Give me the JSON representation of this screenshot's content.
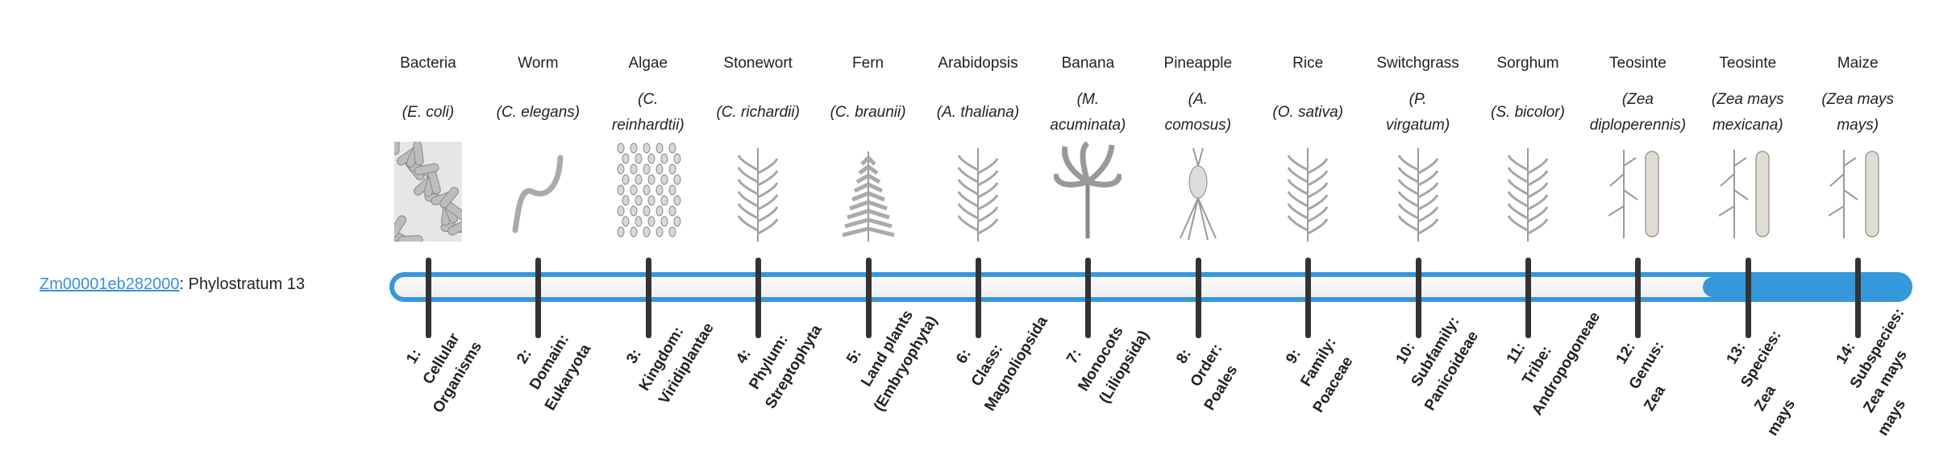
{
  "gene": {
    "id": "Zm00001eb282000",
    "suffix": ": Phylostratum 13"
  },
  "progress": {
    "stratum": 13,
    "total": 14
  },
  "colors": {
    "accent": "#3498db",
    "link": "#3a8fd9",
    "tick": "#333333"
  },
  "organisms": [
    {
      "common": "Bacteria",
      "scientific": [
        "(E. coli)"
      ],
      "image": "bacteria-icon"
    },
    {
      "common": "Worm",
      "scientific": [
        "(C. elegans)"
      ],
      "image": "worm-icon"
    },
    {
      "common": "Algae",
      "scientific": [
        "(C.",
        "reinhardtii)"
      ],
      "image": "algae-icon"
    },
    {
      "common": "Stonewort",
      "scientific": [
        "(C. richardii)"
      ],
      "image": "stonewort-icon"
    },
    {
      "common": "Fern",
      "scientific": [
        "(C. braunii)"
      ],
      "image": "fern-icon"
    },
    {
      "common": "Arabidopsis",
      "scientific": [
        "(A. thaliana)"
      ],
      "image": "arabidopsis-icon"
    },
    {
      "common": "Banana",
      "scientific": [
        "(M.",
        "acuminata)"
      ],
      "image": "banana-icon"
    },
    {
      "common": "Pineapple",
      "scientific": [
        "(A.",
        "comosus)"
      ],
      "image": "pineapple-icon"
    },
    {
      "common": "Rice",
      "scientific": [
        "(O. sativa)"
      ],
      "image": "rice-icon"
    },
    {
      "common": "Switchgrass",
      "scientific": [
        "(P.",
        "virgatum)"
      ],
      "image": "switchgrass-icon"
    },
    {
      "common": "Sorghum",
      "scientific": [
        "(S. bicolor)"
      ],
      "image": "sorghum-icon"
    },
    {
      "common": "Teosinte",
      "scientific": [
        "(Zea",
        "diploperennis)"
      ],
      "image": "teosinte-icon"
    },
    {
      "common": "Teosinte",
      "scientific": [
        "(Zea mays",
        "mexicana)"
      ],
      "image": "teosinte-icon"
    },
    {
      "common": "Maize",
      "scientific": [
        "(Zea mays",
        "mays)"
      ],
      "image": "maize-icon"
    }
  ],
  "strata": [
    [
      "1:",
      "Cellular",
      "Organisms"
    ],
    [
      "2:",
      "Domain:",
      "Eukaryota"
    ],
    [
      "3:",
      "Kingdom:",
      "Viridiplantae"
    ],
    [
      "4:",
      "Phylum:",
      "Streptophyta"
    ],
    [
      "5:",
      "Land plants",
      "(Embryophyta)"
    ],
    [
      "6:",
      "Class:",
      "Magnoliopsida"
    ],
    [
      "7:",
      "Monocots",
      "(Liliopsida)"
    ],
    [
      "8:",
      "Order:",
      "Poales"
    ],
    [
      "9:",
      "Family:",
      "Poaceae"
    ],
    [
      "10:",
      "Subfamily:",
      "Panicoideae"
    ],
    [
      "11:",
      "Tribe:",
      "Andropogoneae"
    ],
    [
      "12:",
      "Genus:",
      "Zea"
    ],
    [
      "13:",
      "Species:",
      "Zea",
      "mays"
    ],
    [
      "14:",
      "Subspecies:",
      "Zea mays",
      "mays"
    ]
  ]
}
